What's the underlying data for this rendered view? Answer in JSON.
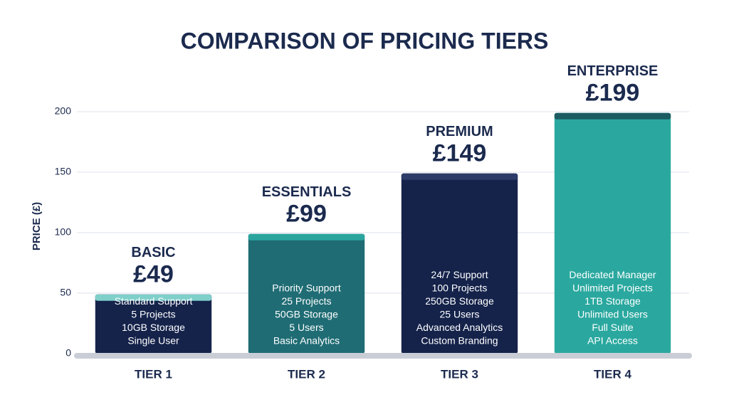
{
  "chart_data": {
    "type": "bar",
    "title": "COMPARISON OF PRICING TIERS",
    "y_label": "PRICE (£)",
    "categories": [
      "TIER 1",
      "TIER 2",
      "TIER 3",
      "TIER 4"
    ],
    "tier_names": [
      "BASIC",
      "ESSENTIALS",
      "PREMIUM",
      "ENTERPRISE"
    ],
    "values": [
      49,
      99,
      149,
      199
    ],
    "value_labels": [
      "£49",
      "£99",
      "£149",
      "£199"
    ],
    "colors": [
      "#15234b",
      "#1f6c74",
      "#15234b",
      "#2aa89f"
    ],
    "cap_colors": [
      "#7fcfca",
      "#2aa59e",
      "#2c3b68",
      "#1d5b62"
    ],
    "features": [
      [
        "Standard Support",
        "5 Projects",
        "10GB Storage",
        "Single User"
      ],
      [
        "Priority Support",
        "25 Projects",
        "50GB Storage",
        "5 Users",
        "Basic Analytics"
      ],
      [
        "24/7 Support",
        "100 Projects",
        "250GB Storage",
        "25 Users",
        "Advanced Analytics",
        "Custom Branding"
      ],
      [
        "Dedicated Manager",
        "Unlimited Projects",
        "1TB Storage",
        "Unlimited Users",
        "Full Suite",
        "API Access"
      ]
    ],
    "ylim": [
      0,
      200
    ],
    "yticks": [
      0,
      50,
      100,
      150,
      200
    ],
    "grid": true
  }
}
